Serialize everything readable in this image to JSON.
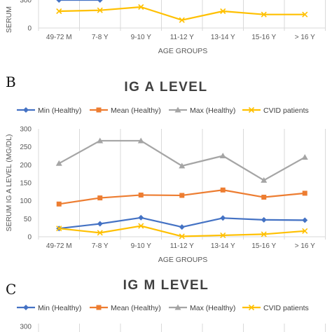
{
  "panels": [
    {
      "letter": "",
      "title": ""
    },
    {
      "letter": "B",
      "title": "IG A LEVEL"
    },
    {
      "letter": "C",
      "title": "IG M LEVEL"
    }
  ],
  "legend": [
    {
      "label": "Min (Healthy)",
      "marker": "diamond",
      "color": "#4472C4"
    },
    {
      "label": "Mean (Healthy)",
      "marker": "square",
      "color": "#ED7D31"
    },
    {
      "label": "Max (Healthy)",
      "marker": "triangle",
      "color": "#A5A5A5"
    },
    {
      "label": "CVID patients",
      "marker": "x",
      "color": "#FFC000"
    }
  ],
  "chart_data": [
    {
      "type": "line",
      "title": "",
      "xlabel": "AGE GROUPS",
      "ylabel": "SERUM",
      "categories": [
        "49-72 M",
        "7-8 Y",
        "9-10 Y",
        "11-12 Y",
        "13-14 Y",
        "15-16 Y",
        "> 16 Y"
      ],
      "y_ticks": [
        0,
        300
      ],
      "ylim": [
        0,
        300
      ],
      "grid": "vertical",
      "series": [
        {
          "name": "Min (Healthy)",
          "color": "#4472C4",
          "marker": "diamond",
          "values": [
            300,
            300,
            null,
            null,
            null,
            null,
            null
          ]
        },
        {
          "name": "CVID patients",
          "color": "#FFC000",
          "marker": "x",
          "values": [
            180,
            190,
            225,
            85,
            180,
            145,
            145
          ]
        }
      ]
    },
    {
      "type": "line",
      "title": "IG A LEVEL",
      "xlabel": "AGE GROUPS",
      "ylabel": "SERUM IG A LEVEL (MG/DL)",
      "categories": [
        "49-72 M",
        "7-8 Y",
        "9-10 Y",
        "11-12 Y",
        "13-14 Y",
        "15-16 Y",
        "> 16 Y"
      ],
      "y_ticks": [
        0,
        50,
        100,
        150,
        200,
        250,
        300
      ],
      "ylim": [
        0,
        300
      ],
      "grid": "vertical",
      "legend_position": "top",
      "series": [
        {
          "name": "Min (Healthy)",
          "color": "#4472C4",
          "marker": "diamond",
          "values": [
            23,
            36,
            53,
            27,
            52,
            47,
            46
          ]
        },
        {
          "name": "Mean (Healthy)",
          "color": "#ED7D31",
          "marker": "square",
          "values": [
            91,
            108,
            116,
            115,
            130,
            110,
            121
          ]
        },
        {
          "name": "Max (Healthy)",
          "color": "#A5A5A5",
          "marker": "triangle",
          "values": [
            204,
            267,
            267,
            197,
            225,
            157,
            221
          ]
        },
        {
          "name": "CVID patients",
          "color": "#FFC000",
          "marker": "x",
          "values": [
            23,
            11,
            30,
            1,
            4,
            7,
            16
          ]
        }
      ]
    },
    {
      "type": "line",
      "title": "IG M LEVEL",
      "xlabel": "",
      "ylabel": "",
      "categories": [],
      "y_ticks": [
        300
      ],
      "ylim": [
        0,
        300
      ],
      "grid": "vertical",
      "legend_position": "top",
      "series": []
    }
  ]
}
